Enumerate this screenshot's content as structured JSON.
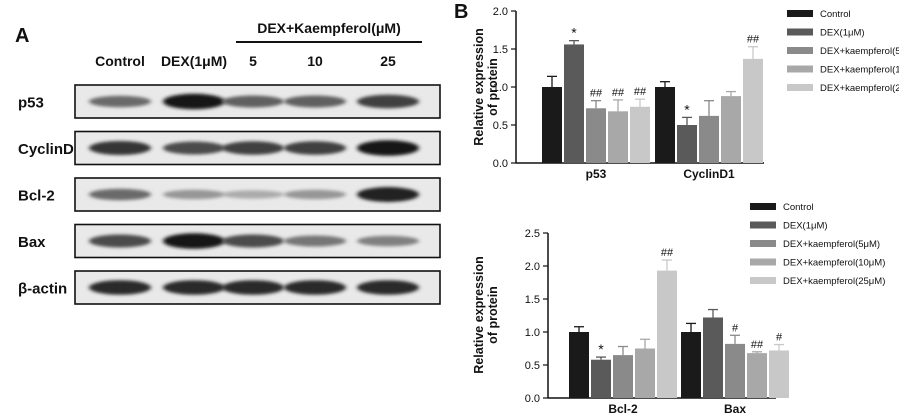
{
  "panel_a": {
    "label": "A",
    "treatment_header": "DEX+Kaempferol(μM)",
    "lane_labels": [
      "Control",
      "DEX(1μM)",
      "5",
      "10",
      "25"
    ],
    "blots": [
      {
        "name": "p53",
        "intensities": [
          0.55,
          0.95,
          0.6,
          0.6,
          0.75
        ]
      },
      {
        "name": "CyclinD1",
        "intensities": [
          0.8,
          0.7,
          0.75,
          0.75,
          0.95
        ]
      },
      {
        "name": "Bcl-2",
        "intensities": [
          0.55,
          0.35,
          0.25,
          0.35,
          0.9
        ]
      },
      {
        "name": "Bax",
        "intensities": [
          0.7,
          0.95,
          0.7,
          0.5,
          0.45
        ]
      },
      {
        "name": "β-actin",
        "intensities": [
          0.85,
          0.85,
          0.85,
          0.85,
          0.85
        ]
      }
    ]
  },
  "panel_b_label": "B",
  "colors": [
    "#1a1a1a",
    "#5a5a5a",
    "#8a8a8a",
    "#a8a8a8",
    "#c8c8c8"
  ],
  "chart_data": [
    {
      "type": "bar",
      "ylabel": "Relative expression of protein",
      "ylim": [
        0,
        2.0
      ],
      "yticks": [
        "0.0",
        "0.5",
        "1.0",
        "1.5",
        "2.0"
      ],
      "categories": [
        "p53",
        "CyclinD1"
      ],
      "legend_position": "top-right",
      "series": [
        {
          "name": "Control",
          "values": [
            1.0,
            1.0
          ],
          "errors": [
            0.14,
            0.07
          ],
          "annotations": [
            "",
            ""
          ]
        },
        {
          "name": "DEX(1μM)",
          "values": [
            1.56,
            0.5
          ],
          "errors": [
            0.05,
            0.1
          ],
          "annotations": [
            "*",
            "*"
          ]
        },
        {
          "name": "DEX+kaempferol(5μM)",
          "values": [
            0.72,
            0.62
          ],
          "errors": [
            0.1,
            0.2
          ],
          "annotations": [
            "##",
            ""
          ]
        },
        {
          "name": "DEX+kaempferol(10μM)",
          "values": [
            0.68,
            0.88
          ],
          "errors": [
            0.15,
            0.06
          ],
          "annotations": [
            "##",
            ""
          ]
        },
        {
          "name": "DEX+kaempferol(25μM)",
          "values": [
            0.74,
            1.37
          ],
          "errors": [
            0.1,
            0.16
          ],
          "annotations": [
            "##",
            "##"
          ]
        }
      ]
    },
    {
      "type": "bar",
      "ylabel": "Relative expression of protein",
      "ylim": [
        0,
        2.5
      ],
      "yticks": [
        "0.0",
        "0.5",
        "1.0",
        "1.5",
        "2.0",
        "2.5"
      ],
      "categories": [
        "Bcl-2",
        "Bax"
      ],
      "legend_position": "top-right",
      "series": [
        {
          "name": "Control",
          "values": [
            1.0,
            1.0
          ],
          "errors": [
            0.08,
            0.13
          ],
          "annotations": [
            "",
            ""
          ]
        },
        {
          "name": "DEX(1μM)",
          "values": [
            0.58,
            1.22
          ],
          "errors": [
            0.04,
            0.12
          ],
          "annotations": [
            "*",
            ""
          ]
        },
        {
          "name": "DEX+kaempferol(5μM)",
          "values": [
            0.65,
            0.82
          ],
          "errors": [
            0.13,
            0.13
          ],
          "annotations": [
            "",
            "#"
          ]
        },
        {
          "name": "DEX+kaempferol(10μM)",
          "values": [
            0.75,
            0.68
          ],
          "errors": [
            0.14,
            0.02
          ],
          "annotations": [
            "",
            "##"
          ]
        },
        {
          "name": "DEX+kaempferol(25μM)",
          "values": [
            1.93,
            0.72
          ],
          "errors": [
            0.16,
            0.09
          ],
          "annotations": [
            "##",
            "#"
          ]
        }
      ]
    }
  ]
}
